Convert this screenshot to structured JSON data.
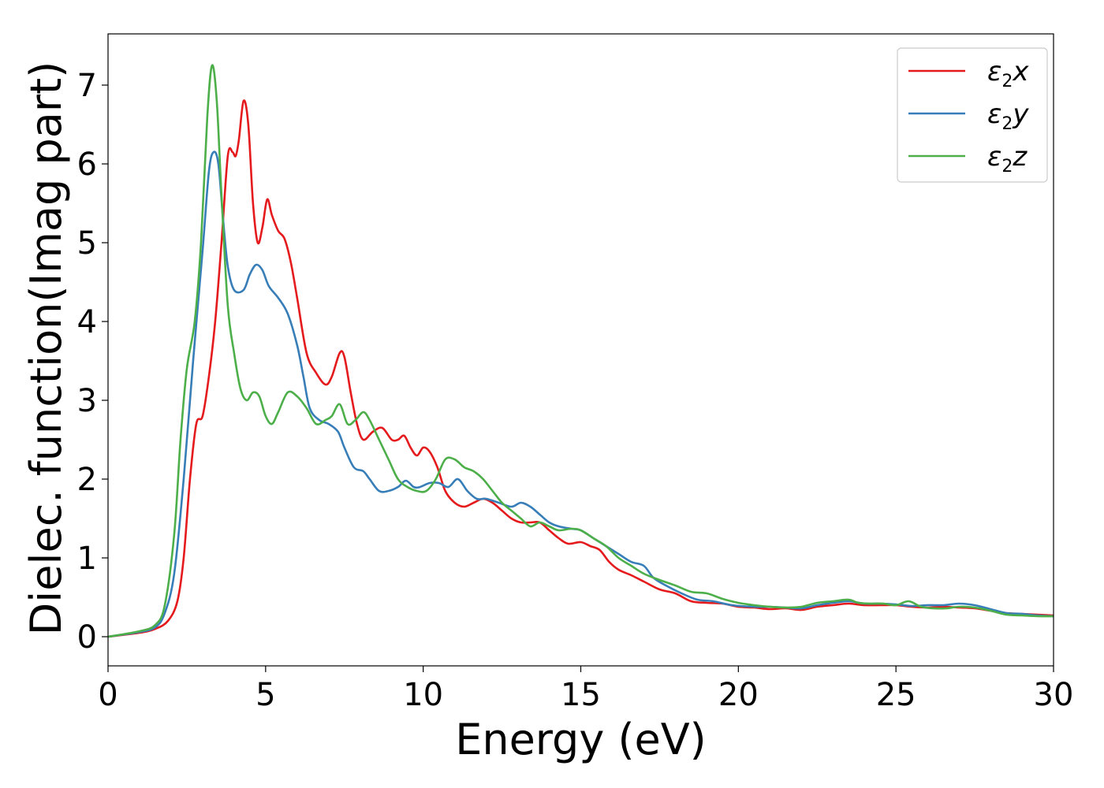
{
  "chart_data": {
    "type": "line",
    "title": "",
    "xlabel": "Energy (eV)",
    "ylabel": "Dielec. function(Imag part)",
    "xlim": [
      0,
      30
    ],
    "ylim": [
      -0.37,
      7.65
    ],
    "xticks": [
      0,
      5,
      10,
      15,
      20,
      25,
      30
    ],
    "xtick_labels": [
      "0",
      "5",
      "10",
      "15",
      "20",
      "25",
      "30"
    ],
    "yticks": [
      0,
      1,
      2,
      3,
      4,
      5,
      6,
      7
    ],
    "ytick_labels": [
      "0",
      "1",
      "2",
      "3",
      "4",
      "5",
      "6",
      "7"
    ],
    "grid": false,
    "legend_position": "top-right",
    "series": [
      {
        "name": "ε₂x",
        "legend_base": "ε",
        "legend_sub": "2",
        "legend_suffix": "x",
        "color": "#e41a1c",
        "points": [
          [
            0,
            0
          ],
          [
            1,
            0.05
          ],
          [
            1.5,
            0.1
          ],
          [
            1.9,
            0.2
          ],
          [
            2.2,
            0.45
          ],
          [
            2.4,
            1.0
          ],
          [
            2.6,
            2.0
          ],
          [
            2.8,
            2.7
          ],
          [
            3.0,
            2.8
          ],
          [
            3.2,
            3.3
          ],
          [
            3.4,
            4.0
          ],
          [
            3.6,
            5.0
          ],
          [
            3.8,
            6.1
          ],
          [
            3.95,
            6.15
          ],
          [
            4.05,
            6.1
          ],
          [
            4.15,
            6.3
          ],
          [
            4.3,
            6.8
          ],
          [
            4.45,
            6.5
          ],
          [
            4.6,
            5.5
          ],
          [
            4.75,
            5.0
          ],
          [
            4.9,
            5.2
          ],
          [
            5.05,
            5.55
          ],
          [
            5.2,
            5.35
          ],
          [
            5.4,
            5.15
          ],
          [
            5.6,
            5.05
          ],
          [
            5.8,
            4.75
          ],
          [
            6.0,
            4.3
          ],
          [
            6.3,
            3.6
          ],
          [
            6.6,
            3.35
          ],
          [
            6.9,
            3.2
          ],
          [
            7.1,
            3.3
          ],
          [
            7.35,
            3.6
          ],
          [
            7.5,
            3.55
          ],
          [
            7.7,
            3.1
          ],
          [
            7.9,
            2.7
          ],
          [
            8.1,
            2.5
          ],
          [
            8.4,
            2.6
          ],
          [
            8.7,
            2.65
          ],
          [
            9.0,
            2.5
          ],
          [
            9.2,
            2.5
          ],
          [
            9.4,
            2.55
          ],
          [
            9.6,
            2.4
          ],
          [
            9.8,
            2.3
          ],
          [
            10.0,
            2.4
          ],
          [
            10.2,
            2.35
          ],
          [
            10.45,
            2.15
          ],
          [
            10.7,
            1.85
          ],
          [
            11.0,
            1.7
          ],
          [
            11.3,
            1.65
          ],
          [
            11.6,
            1.7
          ],
          [
            11.9,
            1.75
          ],
          [
            12.2,
            1.7
          ],
          [
            12.5,
            1.6
          ],
          [
            12.8,
            1.5
          ],
          [
            13.1,
            1.45
          ],
          [
            13.4,
            1.45
          ],
          [
            13.7,
            1.45
          ],
          [
            14.0,
            1.35
          ],
          [
            14.3,
            1.25
          ],
          [
            14.6,
            1.18
          ],
          [
            15.0,
            1.2
          ],
          [
            15.3,
            1.15
          ],
          [
            15.6,
            1.1
          ],
          [
            15.9,
            0.95
          ],
          [
            16.2,
            0.85
          ],
          [
            16.6,
            0.78
          ],
          [
            17.0,
            0.7
          ],
          [
            17.5,
            0.6
          ],
          [
            18.0,
            0.55
          ],
          [
            18.5,
            0.45
          ],
          [
            19.0,
            0.43
          ],
          [
            19.5,
            0.42
          ],
          [
            20.0,
            0.38
          ],
          [
            20.5,
            0.37
          ],
          [
            21.0,
            0.35
          ],
          [
            21.5,
            0.36
          ],
          [
            22.0,
            0.34
          ],
          [
            22.5,
            0.38
          ],
          [
            23.0,
            0.4
          ],
          [
            23.5,
            0.42
          ],
          [
            24.0,
            0.4
          ],
          [
            24.5,
            0.4
          ],
          [
            25.0,
            0.4
          ],
          [
            25.5,
            0.38
          ],
          [
            26.0,
            0.37
          ],
          [
            26.5,
            0.38
          ],
          [
            27.0,
            0.37
          ],
          [
            27.5,
            0.36
          ],
          [
            28.0,
            0.33
          ],
          [
            28.5,
            0.3
          ],
          [
            29.0,
            0.29
          ],
          [
            29.5,
            0.28
          ],
          [
            30.0,
            0.27
          ]
        ]
      },
      {
        "name": "ε₂y",
        "legend_base": "ε",
        "legend_sub": "2",
        "legend_suffix": "y",
        "color": "#377eb8",
        "points": [
          [
            0,
            0
          ],
          [
            1,
            0.06
          ],
          [
            1.5,
            0.12
          ],
          [
            1.8,
            0.3
          ],
          [
            2.1,
            0.8
          ],
          [
            2.4,
            2.0
          ],
          [
            2.7,
            3.5
          ],
          [
            3.0,
            4.9
          ],
          [
            3.2,
            5.9
          ],
          [
            3.35,
            6.15
          ],
          [
            3.5,
            6.0
          ],
          [
            3.65,
            5.3
          ],
          [
            3.8,
            4.7
          ],
          [
            4.0,
            4.4
          ],
          [
            4.3,
            4.4
          ],
          [
            4.5,
            4.6
          ],
          [
            4.7,
            4.72
          ],
          [
            4.9,
            4.65
          ],
          [
            5.1,
            4.45
          ],
          [
            5.4,
            4.3
          ],
          [
            5.7,
            4.1
          ],
          [
            6.0,
            3.7
          ],
          [
            6.2,
            3.3
          ],
          [
            6.4,
            2.9
          ],
          [
            6.7,
            2.75
          ],
          [
            7.0,
            2.7
          ],
          [
            7.3,
            2.6
          ],
          [
            7.5,
            2.4
          ],
          [
            7.8,
            2.15
          ],
          [
            8.1,
            2.1
          ],
          [
            8.3,
            2.0
          ],
          [
            8.6,
            1.85
          ],
          [
            8.9,
            1.85
          ],
          [
            9.2,
            1.9
          ],
          [
            9.45,
            1.98
          ],
          [
            9.7,
            1.9
          ],
          [
            9.9,
            1.9
          ],
          [
            10.2,
            1.95
          ],
          [
            10.5,
            1.95
          ],
          [
            10.8,
            1.9
          ],
          [
            11.1,
            2.0
          ],
          [
            11.4,
            1.85
          ],
          [
            11.7,
            1.75
          ],
          [
            12.0,
            1.75
          ],
          [
            12.4,
            1.7
          ],
          [
            12.8,
            1.65
          ],
          [
            13.1,
            1.7
          ],
          [
            13.4,
            1.65
          ],
          [
            13.7,
            1.55
          ],
          [
            14.0,
            1.45
          ],
          [
            14.3,
            1.4
          ],
          [
            14.7,
            1.37
          ],
          [
            15.0,
            1.35
          ],
          [
            15.4,
            1.25
          ],
          [
            15.8,
            1.15
          ],
          [
            16.2,
            1.05
          ],
          [
            16.6,
            0.95
          ],
          [
            17.0,
            0.9
          ],
          [
            17.3,
            0.75
          ],
          [
            17.7,
            0.65
          ],
          [
            18.2,
            0.55
          ],
          [
            18.7,
            0.47
          ],
          [
            19.2,
            0.45
          ],
          [
            19.8,
            0.4
          ],
          [
            20.5,
            0.38
          ],
          [
            21.0,
            0.38
          ],
          [
            21.5,
            0.37
          ],
          [
            22.0,
            0.36
          ],
          [
            22.5,
            0.4
          ],
          [
            23.0,
            0.43
          ],
          [
            23.5,
            0.45
          ],
          [
            24.0,
            0.42
          ],
          [
            24.5,
            0.42
          ],
          [
            25.0,
            0.41
          ],
          [
            25.5,
            0.39
          ],
          [
            26.0,
            0.4
          ],
          [
            26.5,
            0.4
          ],
          [
            27.0,
            0.42
          ],
          [
            27.5,
            0.4
          ],
          [
            28.0,
            0.35
          ],
          [
            28.5,
            0.3
          ],
          [
            29.0,
            0.29
          ],
          [
            29.5,
            0.27
          ],
          [
            30.0,
            0.26
          ]
        ]
      },
      {
        "name": "ε₂z",
        "legend_base": "ε",
        "legend_sub": "2",
        "legend_suffix": "z",
        "color": "#4daf4a",
        "points": [
          [
            0,
            0
          ],
          [
            1,
            0.07
          ],
          [
            1.5,
            0.15
          ],
          [
            1.8,
            0.4
          ],
          [
            2.1,
            1.3
          ],
          [
            2.3,
            2.5
          ],
          [
            2.5,
            3.4
          ],
          [
            2.75,
            4.0
          ],
          [
            2.95,
            5.0
          ],
          [
            3.15,
            6.6
          ],
          [
            3.3,
            7.25
          ],
          [
            3.45,
            6.8
          ],
          [
            3.6,
            5.6
          ],
          [
            3.8,
            4.2
          ],
          [
            4.0,
            3.6
          ],
          [
            4.2,
            3.15
          ],
          [
            4.4,
            3.0
          ],
          [
            4.6,
            3.1
          ],
          [
            4.8,
            3.05
          ],
          [
            5.0,
            2.8
          ],
          [
            5.2,
            2.7
          ],
          [
            5.4,
            2.85
          ],
          [
            5.7,
            3.1
          ],
          [
            6.0,
            3.05
          ],
          [
            6.3,
            2.9
          ],
          [
            6.6,
            2.7
          ],
          [
            6.9,
            2.75
          ],
          [
            7.1,
            2.8
          ],
          [
            7.35,
            2.95
          ],
          [
            7.6,
            2.7
          ],
          [
            7.85,
            2.75
          ],
          [
            8.1,
            2.85
          ],
          [
            8.3,
            2.75
          ],
          [
            8.6,
            2.5
          ],
          [
            8.9,
            2.25
          ],
          [
            9.2,
            2.0
          ],
          [
            9.5,
            1.9
          ],
          [
            9.8,
            1.85
          ],
          [
            10.1,
            1.85
          ],
          [
            10.4,
            2.0
          ],
          [
            10.7,
            2.25
          ],
          [
            11.0,
            2.25
          ],
          [
            11.3,
            2.15
          ],
          [
            11.6,
            2.1
          ],
          [
            11.9,
            2.0
          ],
          [
            12.2,
            1.85
          ],
          [
            12.5,
            1.7
          ],
          [
            12.8,
            1.6
          ],
          [
            13.1,
            1.5
          ],
          [
            13.4,
            1.4
          ],
          [
            13.7,
            1.45
          ],
          [
            14.0,
            1.4
          ],
          [
            14.3,
            1.35
          ],
          [
            14.7,
            1.37
          ],
          [
            15.0,
            1.35
          ],
          [
            15.4,
            1.25
          ],
          [
            15.8,
            1.15
          ],
          [
            16.2,
            1.0
          ],
          [
            16.6,
            0.9
          ],
          [
            17.0,
            0.8
          ],
          [
            17.5,
            0.72
          ],
          [
            18.0,
            0.65
          ],
          [
            18.5,
            0.57
          ],
          [
            19.0,
            0.55
          ],
          [
            19.5,
            0.48
          ],
          [
            20.0,
            0.43
          ],
          [
            20.5,
            0.4
          ],
          [
            21.0,
            0.38
          ],
          [
            21.5,
            0.37
          ],
          [
            22.0,
            0.38
          ],
          [
            22.5,
            0.43
          ],
          [
            23.0,
            0.45
          ],
          [
            23.5,
            0.47
          ],
          [
            23.8,
            0.43
          ],
          [
            24.2,
            0.42
          ],
          [
            24.6,
            0.42
          ],
          [
            25.0,
            0.4
          ],
          [
            25.4,
            0.45
          ],
          [
            25.8,
            0.38
          ],
          [
            26.2,
            0.36
          ],
          [
            26.6,
            0.36
          ],
          [
            27.0,
            0.38
          ],
          [
            27.5,
            0.37
          ],
          [
            28.0,
            0.33
          ],
          [
            28.5,
            0.28
          ],
          [
            29.0,
            0.27
          ],
          [
            29.5,
            0.26
          ],
          [
            30.0,
            0.26
          ]
        ]
      }
    ]
  }
}
